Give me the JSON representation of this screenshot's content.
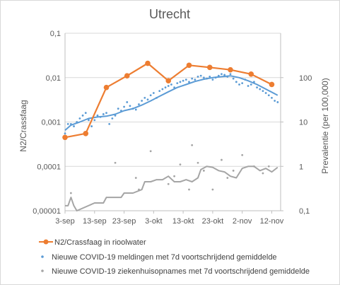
{
  "chart_data": {
    "type": "line",
    "title": "Utrecht",
    "ylabel_left": "N2/Crassfaag",
    "ylabel_right": "Prevalentie (per 100,000)",
    "y_left_scale": "log",
    "y_left_lim": [
      1e-05,
      0.1
    ],
    "y_left_ticks": [
      "0,1",
      "0,01",
      "0,001",
      "0,0001",
      "0,00001"
    ],
    "y_right_scale": "log",
    "y_right_lim": [
      0.1,
      1000
    ],
    "y_right_ticks": [
      "100",
      "10",
      "1",
      "0,1"
    ],
    "x_start": "2020-09-03",
    "x_end": "2020-11-15",
    "x_tick_labels": [
      "3-sep",
      "13-sep",
      "23-sep",
      "3-okt",
      "13-okt",
      "23-okt",
      "2-nov",
      "12-nov"
    ],
    "x_tick_dates": [
      "2020-09-03",
      "2020-09-13",
      "2020-09-23",
      "2020-10-03",
      "2020-10-13",
      "2020-10-23",
      "2020-11-02",
      "2020-11-12"
    ],
    "legend_position": "bottom",
    "colors": {
      "sewage": "#ed7d31",
      "cases": "#5b9bd5",
      "hospital": "#a5a5a5",
      "grid": "#d9d9d9",
      "axis": "#bfbfbf"
    },
    "series": [
      {
        "name": "N2/Crassfaag in rioolwater",
        "axis": "left",
        "style": "line-markers",
        "x": [
          "2020-09-03",
          "2020-09-10",
          "2020-09-17",
          "2020-09-24",
          "2020-10-01",
          "2020-10-08",
          "2020-10-15",
          "2020-10-22",
          "2020-10-29",
          "2020-11-05",
          "2020-11-12"
        ],
        "y": [
          0.00045,
          0.00055,
          0.006,
          0.011,
          0.021,
          0.0085,
          0.019,
          0.017,
          0.015,
          0.012,
          0.007
        ]
      },
      {
        "name": "Nieuwe COVID-19 meldingen met 7d voortschrijdend gemiddelde",
        "axis": "right",
        "style": "scatter-with-7d-avg",
        "points": {
          "x": [
            "2020-09-03",
            "2020-09-04",
            "2020-09-05",
            "2020-09-06",
            "2020-09-07",
            "2020-09-08",
            "2020-09-09",
            "2020-09-10",
            "2020-09-11",
            "2020-09-12",
            "2020-09-13",
            "2020-09-14",
            "2020-09-15",
            "2020-09-16",
            "2020-09-17",
            "2020-09-18",
            "2020-09-19",
            "2020-09-20",
            "2020-09-21",
            "2020-09-22",
            "2020-09-23",
            "2020-09-24",
            "2020-09-25",
            "2020-09-26",
            "2020-09-27",
            "2020-09-28",
            "2020-09-29",
            "2020-09-30",
            "2020-10-01",
            "2020-10-02",
            "2020-10-03",
            "2020-10-04",
            "2020-10-05",
            "2020-10-06",
            "2020-10-07",
            "2020-10-08",
            "2020-10-09",
            "2020-10-10",
            "2020-10-11",
            "2020-10-12",
            "2020-10-13",
            "2020-10-14",
            "2020-10-15",
            "2020-10-16",
            "2020-10-17",
            "2020-10-18",
            "2020-10-19",
            "2020-10-20",
            "2020-10-21",
            "2020-10-22",
            "2020-10-23",
            "2020-10-24",
            "2020-10-25",
            "2020-10-26",
            "2020-10-27",
            "2020-10-28",
            "2020-10-29",
            "2020-10-30",
            "2020-10-31",
            "2020-11-01",
            "2020-11-02",
            "2020-11-03",
            "2020-11-04",
            "2020-11-05",
            "2020-11-06",
            "2020-11-07",
            "2020-11-08",
            "2020-11-09",
            "2020-11-10",
            "2020-11-11",
            "2020-11-12",
            "2020-11-13",
            "2020-11-14"
          ],
          "y": [
            5.5,
            9,
            9,
            8,
            10,
            12,
            14,
            16,
            11,
            8,
            11,
            14,
            13,
            15,
            16,
            9,
            12,
            14,
            20,
            18,
            22,
            28,
            23,
            20,
            19,
            25,
            30,
            35,
            32,
            40,
            45,
            35,
            50,
            55,
            60,
            65,
            70,
            60,
            75,
            80,
            85,
            90,
            80,
            95,
            90,
            105,
            110,
            100,
            95,
            105,
            90,
            100,
            110,
            120,
            115,
            105,
            120,
            95,
            80,
            70,
            75,
            90,
            65,
            70,
            80,
            60,
            55,
            50,
            45,
            40,
            35,
            30,
            28
          ]
        },
        "avg": {
          "x": [
            "2020-09-03",
            "2020-09-05",
            "2020-09-08",
            "2020-09-11",
            "2020-09-14",
            "2020-09-17",
            "2020-09-20",
            "2020-09-23",
            "2020-09-26",
            "2020-09-29",
            "2020-10-02",
            "2020-10-05",
            "2020-10-08",
            "2020-10-11",
            "2020-10-14",
            "2020-10-17",
            "2020-10-20",
            "2020-10-23",
            "2020-10-26",
            "2020-10-29",
            "2020-11-01",
            "2020-11-04",
            "2020-11-07",
            "2020-11-10",
            "2020-11-14"
          ],
          "y": [
            6.5,
            8.5,
            10,
            12,
            13,
            13.5,
            15,
            18,
            20,
            24,
            30,
            38,
            48,
            60,
            70,
            82,
            92,
            100,
            105,
            110,
            100,
            85,
            70,
            55,
            40
          ]
        }
      },
      {
        "name": "Nieuwe COVID-19 ziekenhuisopnames met 7d voortschrijdend gemiddelde",
        "axis": "right",
        "style": "scatter-with-7d-avg",
        "points": {
          "x": [
            "2020-09-05",
            "2020-09-20",
            "2020-09-27",
            "2020-09-28",
            "2020-10-02",
            "2020-10-08",
            "2020-10-10",
            "2020-10-12",
            "2020-10-15",
            "2020-10-16",
            "2020-10-18",
            "2020-10-20",
            "2020-10-23",
            "2020-10-26",
            "2020-10-28",
            "2020-10-30",
            "2020-11-02",
            "2020-11-06",
            "2020-11-09",
            "2020-11-11"
          ],
          "y": [
            0.25,
            1.2,
            0.55,
            0.3,
            2.2,
            0.4,
            0.6,
            1.1,
            0.3,
            3.0,
            1.2,
            0.8,
            0.3,
            1.4,
            0.55,
            0.8,
            1.8,
            1.0,
            0.7,
            1.0
          ]
        },
        "avg": {
          "x": [
            "2020-09-03",
            "2020-09-04",
            "2020-09-05",
            "2020-09-06",
            "2020-09-07",
            "2020-09-13",
            "2020-09-16",
            "2020-09-17",
            "2020-09-22",
            "2020-09-23",
            "2020-09-26",
            "2020-09-29",
            "2020-09-30",
            "2020-10-02",
            "2020-10-04",
            "2020-10-06",
            "2020-10-08",
            "2020-10-10",
            "2020-10-12",
            "2020-10-14",
            "2020-10-16",
            "2020-10-18",
            "2020-10-19",
            "2020-10-21",
            "2020-10-23",
            "2020-10-25",
            "2020-10-27",
            "2020-10-29",
            "2020-10-31",
            "2020-11-02",
            "2020-11-04",
            "2020-11-06",
            "2020-11-08",
            "2020-11-10",
            "2020-11-12",
            "2020-11-14"
          ],
          "y": [
            0.13,
            0.13,
            0.2,
            0.13,
            0.1,
            0.15,
            0.15,
            0.2,
            0.2,
            0.25,
            0.25,
            0.3,
            0.45,
            0.45,
            0.5,
            0.5,
            0.6,
            0.45,
            0.45,
            0.5,
            0.45,
            0.55,
            0.85,
            1.0,
            0.95,
            0.8,
            0.75,
            0.6,
            0.55,
            0.9,
            1.0,
            1.0,
            0.8,
            0.9,
            0.75,
            0.95
          ]
        }
      }
    ]
  }
}
